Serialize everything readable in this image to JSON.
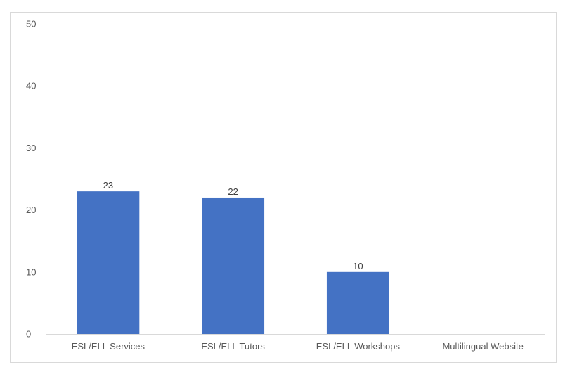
{
  "chart_data": {
    "type": "bar",
    "title": "",
    "xlabel": "",
    "ylabel": "",
    "categories": [
      "ESL/ELL Services",
      "ESL/ELL Tutors",
      "ESL/ELL Workshops",
      "Multilingual Website"
    ],
    "values": [
      23,
      22,
      10,
      0
    ],
    "data_labels": [
      "23",
      "22",
      "10",
      ""
    ],
    "ylim": [
      0,
      50
    ],
    "yticks": [
      "0",
      "10",
      "20",
      "30",
      "40",
      "50"
    ],
    "ytick_values": [
      0,
      10,
      20,
      30,
      40,
      50
    ],
    "grid": false,
    "legend": "none",
    "bar_color": "#4472c4",
    "axis_color": "#d9d9d9"
  }
}
